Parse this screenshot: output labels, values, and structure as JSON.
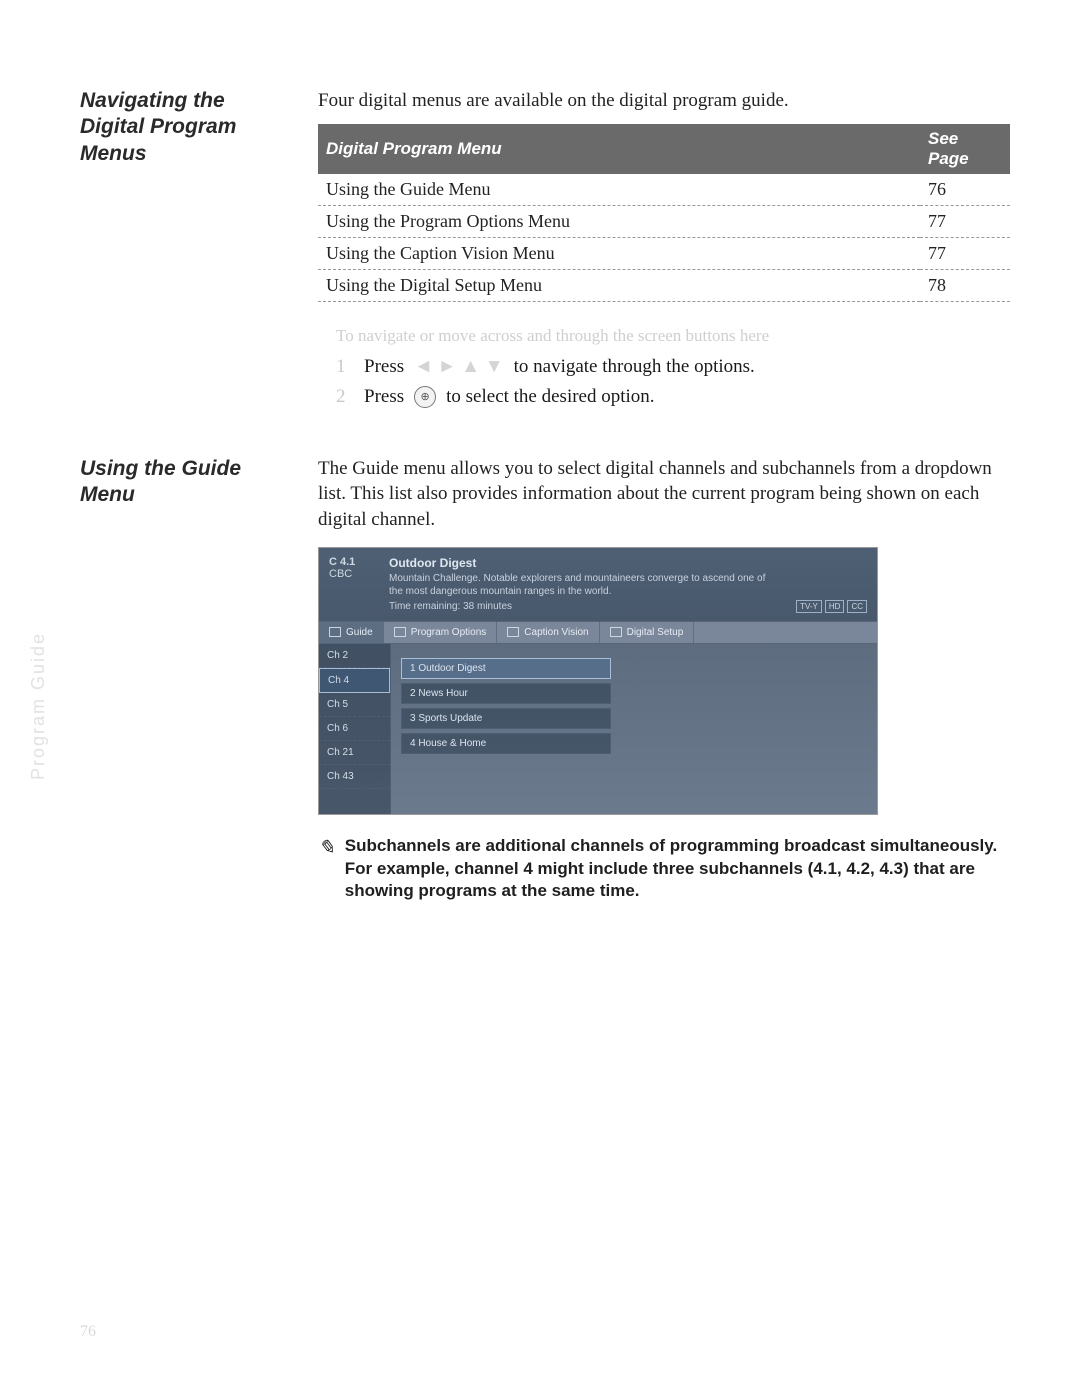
{
  "section1": {
    "heading": "Navigating the Digital Program Menus",
    "intro": "Four digital menus are available on the digital program guide.",
    "table": {
      "header_menu": "Digital Program Menu",
      "header_page": "See Page",
      "rows": [
        {
          "menu": "Using the Guide Menu",
          "page": "76"
        },
        {
          "menu": "Using the Program Options Menu",
          "page": "77"
        },
        {
          "menu": "Using the Caption Vision Menu",
          "page": "77"
        },
        {
          "menu": "Using the Digital Setup Menu",
          "page": "78"
        }
      ]
    },
    "faded_intro": "To navigate or move across and through the screen buttons here",
    "steps": {
      "s1_num": "1",
      "s1_a": "Press",
      "s1_mid": "◄ ► ▲ ▼",
      "s1_b": "to navigate through the options.",
      "s2_num": "2",
      "s2_a": "Press",
      "s2_btn": "⊕",
      "s2_b": "to select the desired option."
    }
  },
  "section2": {
    "heading": "Using the Guide Menu",
    "intro": "The Guide menu allows you to select digital channels and subchannels from a dropdown list. This list also provides information about the current program being shown on each digital channel.",
    "guide": {
      "current_ch": "C 4.1",
      "current_net": "CBC",
      "current_title": "Outdoor Digest",
      "current_desc": "Mountain Challenge. Notable explorers and mountaineers converge to ascend one of the most dangerous mountain ranges in the world.",
      "time_remain": "Time remaining: 38 minutes",
      "badges": [
        "TV-Y",
        "HD",
        "CC"
      ],
      "tabs": [
        {
          "label": "Guide",
          "icon": "list-icon"
        },
        {
          "label": "Program Options",
          "icon": "grid-icon"
        },
        {
          "label": "Caption Vision",
          "icon": "cc-icon"
        },
        {
          "label": "Digital Setup",
          "icon": "setup-icon"
        }
      ],
      "channels": [
        "Ch 2",
        "Ch 4",
        "Ch 5",
        "Ch 6",
        "Ch 21",
        "Ch 43"
      ],
      "selected_channel_index": 1,
      "programs": [
        "1 Outdoor Digest",
        "2 News Hour",
        "3 Sports Update",
        "4 House & Home"
      ],
      "selected_program_index": 0
    },
    "note": "Subchannels are additional channels of programming broadcast simultaneously. For example, channel 4 might include three subchannels (4.1, 4.2, 4.3) that are showing programs at the same time.",
    "note_icon": "✎"
  },
  "side_text": "Program Guide",
  "page_number": "76",
  "colors": {
    "table_header_bg": "#6a6a6a",
    "guide_bg": "#6b7a8c",
    "sel_bg": "#576e8a"
  }
}
